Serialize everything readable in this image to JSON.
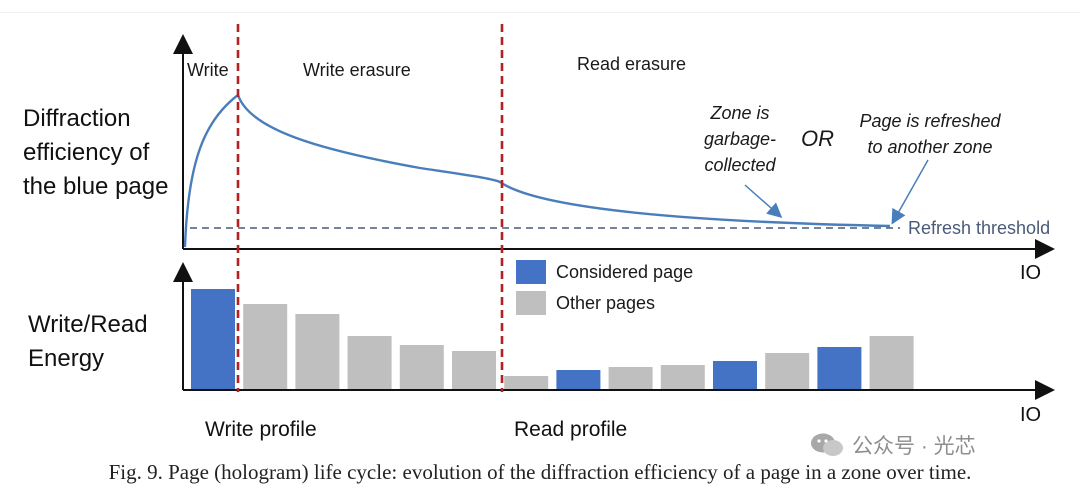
{
  "y_labels": {
    "top": "Diffraction\nefficiency of\nthe blue page",
    "bottom": "Write/Read\nEnergy"
  },
  "phases": {
    "write": "Write",
    "write_erasure": "Write erasure",
    "read_erasure": "Read erasure"
  },
  "annotations": {
    "zone_gc": "Zone is\ngarbage-\ncollected",
    "or": "OR",
    "page_refreshed": "Page is refreshed\nto another zone",
    "refresh_threshold": "Refresh threshold"
  },
  "axes": {
    "top_x": "IO",
    "bottom_x": "IO"
  },
  "legend": [
    {
      "label": "Considered page",
      "color": "#4472c4"
    },
    {
      "label": "Other pages",
      "color": "#bfbfbf"
    }
  ],
  "profiles": {
    "write": "Write profile",
    "read": "Read profile"
  },
  "energy_bars": [
    {
      "kind": "considered",
      "value": 1.0
    },
    {
      "kind": "other",
      "value": 0.85
    },
    {
      "kind": "other",
      "value": 0.75
    },
    {
      "kind": "other",
      "value": 0.53
    },
    {
      "kind": "other",
      "value": 0.44
    },
    {
      "kind": "other",
      "value": 0.38
    },
    {
      "kind": "other",
      "value": 0.13
    },
    {
      "kind": "considered",
      "value": 0.19
    },
    {
      "kind": "other",
      "value": 0.22
    },
    {
      "kind": "other",
      "value": 0.24
    },
    {
      "kind": "considered",
      "value": 0.28
    },
    {
      "kind": "other",
      "value": 0.36
    },
    {
      "kind": "considered",
      "value": 0.42
    },
    {
      "kind": "other",
      "value": 0.53
    }
  ],
  "colors": {
    "curve": "#4a7ebb",
    "phase_divider": "#b22222",
    "threshold_line": "#4a5a78"
  },
  "caption": "Fig. 9.  Page (hologram) life cycle: evolution of the diffraction efficiency of a page in a zone over time.",
  "watermark": "公众号 · 光芯"
}
